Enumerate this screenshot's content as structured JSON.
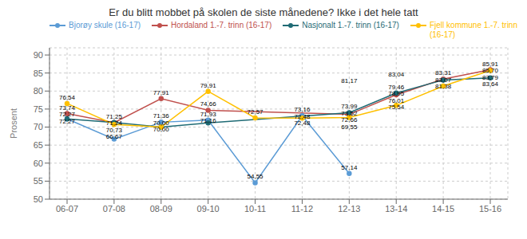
{
  "chart_data": {
    "type": "line",
    "title": "Er du blitt mobbet på skolen de siste månedene? Ikke i det hele tatt",
    "ylabel": "Prosent",
    "categories": [
      "06-07",
      "07-08",
      "08-09",
      "09-10",
      "10-11",
      "11-12",
      "12-13",
      "13-14",
      "14-15",
      "15-16"
    ],
    "series": [
      {
        "name": "Bjorøy skule (16-17)",
        "color": "#5B9BD5",
        "marker": "circle",
        "values": [
          72.27,
          66.67,
          71.36,
          71.93,
          54.55,
          73.16,
          57.14,
          null,
          null,
          null
        ],
        "value_labels": [
          "72,27",
          "66,67",
          "71,36",
          "71,93",
          "54,55",
          "73,16",
          "57,14",
          null,
          null,
          null
        ]
      },
      {
        "name": "Hordaland 1.-7. trinn (16-17)",
        "color": "#C0504D",
        "marker": "circle",
        "values": [
          73.74,
          71.24,
          77.91,
          74.66,
          null,
          null,
          73.52,
          78.95,
          83.31,
          85.91
        ],
        "value_labels": [
          "73,74",
          "71,24",
          "77,91",
          "74,66",
          null,
          null,
          "73,52",
          "78,95",
          "83,31",
          "85,91"
        ]
      },
      {
        "name": "Nasjonalt 1.-7. trinn (16-17)",
        "color": "#1F6B75",
        "marker": "circle",
        "values": [
          72.27,
          71.25,
          70.0,
          71.16,
          null,
          null,
          73.99,
          79.46,
          83.07,
          83.64
        ],
        "value_labels": [
          "72,27",
          "71,25",
          "70,00",
          "71,16",
          null,
          null,
          "73,99",
          "79,46",
          "83,07",
          "83,64"
        ]
      },
      {
        "name": "Fjell kommune 1.-7. trinn\n(16-17)",
        "color": "#FFC000",
        "marker": "circle",
        "values": [
          76.54,
          70.73,
          70.0,
          79.91,
          72.57,
          72.48,
          72.66,
          76.01,
          81.38,
          85.7
        ],
        "value_labels": [
          "76,54",
          "70,73",
          "70,00",
          "79,91",
          "72,57",
          "72,48",
          "72,66",
          "76,01",
          "81,38",
          "85,70"
        ]
      }
    ],
    "data_labels": true,
    "annotations": [
      {
        "x": "11-12",
        "y": 72.48,
        "text": "72,48"
      },
      {
        "x": "12-13",
        "y": 69.55,
        "text": "69,55"
      },
      {
        "x": "12-13",
        "y": 81.17,
        "text": "81,17"
      },
      {
        "x": "13-14",
        "y": 83.04,
        "text": "83,04"
      },
      {
        "x": "13-14",
        "y": 75.54,
        "text": "75,54"
      },
      {
        "x": "15-16",
        "y": 83.79,
        "text": "83,79"
      }
    ],
    "ylim": [
      50,
      92
    ],
    "yticks": [
      50,
      55,
      60,
      65,
      70,
      75,
      80,
      85,
      90
    ],
    "grid": true,
    "legend": "top left"
  }
}
